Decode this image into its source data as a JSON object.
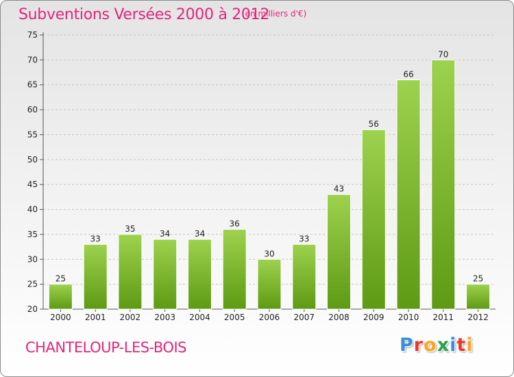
{
  "header": {
    "title": "Subventions Versées 2000 à 2012",
    "subtitle": "(en milliers d'€)"
  },
  "footer": {
    "town": "CHANTELOUP-LES-BOIS",
    "logo_text": "Proxiti",
    "logo_colors": [
      "#3a8fd8",
      "#e8392c",
      "#f5a623",
      "#2aa24b",
      "#3a8fd8",
      "#e8392c",
      "#f5a623"
    ]
  },
  "colors": {
    "accent": "#e0267a",
    "bar_top": "#9dd24e",
    "bar_bottom": "#5e9a14",
    "grid": "#c4c4c4",
    "axis": "#555555"
  },
  "chart_data": {
    "type": "bar",
    "title": "Subventions Versées 2000 à 2012",
    "subtitle": "(en milliers d'€)",
    "xlabel": "",
    "ylabel": "",
    "categories": [
      "2000",
      "2001",
      "2002",
      "2003",
      "2004",
      "2005",
      "2006",
      "2007",
      "2008",
      "2009",
      "2010",
      "2011",
      "2012"
    ],
    "values": [
      25,
      33,
      35,
      34,
      34,
      36,
      30,
      33,
      43,
      56,
      66,
      70,
      25
    ],
    "ylim": [
      20,
      75
    ],
    "yticks": [
      20,
      25,
      30,
      35,
      40,
      45,
      50,
      55,
      60,
      65,
      70,
      75
    ],
    "grid": true,
    "legend": "none"
  }
}
